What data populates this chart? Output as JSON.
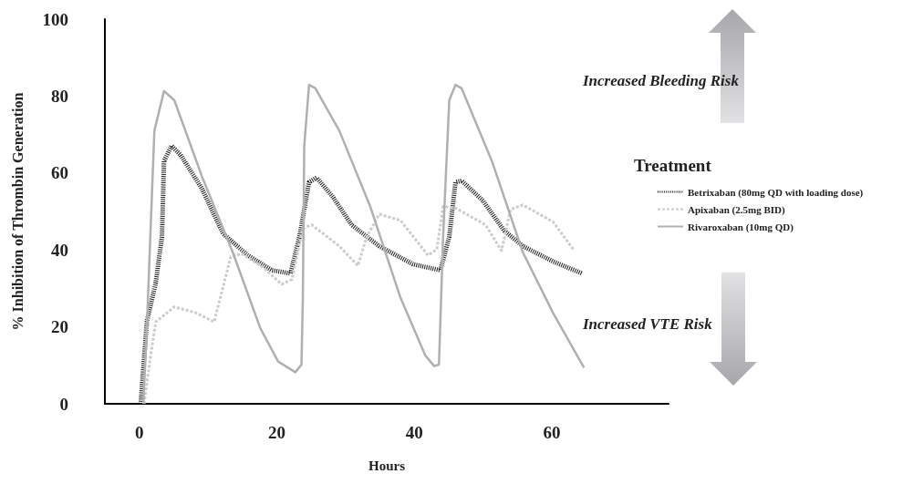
{
  "chart_data": {
    "type": "line",
    "xlabel": "Hours",
    "ylabel": "% Inhibition of Thrombin Generation",
    "legend_title": "Treatment",
    "legend": "right",
    "grid": false,
    "marker": "none",
    "xlim": [
      -5,
      77
    ],
    "xticks": [
      0,
      20,
      40,
      60
    ],
    "ylim": [
      0,
      100
    ],
    "yticks": [
      0,
      20,
      40,
      60,
      80,
      100
    ],
    "annotations": [
      "Increased Bleeding Risk",
      "Increased VTE Risk"
    ],
    "series": [
      {
        "name": "Betrixaban (80mg QD with loading dose)",
        "color": "#1a1a1a",
        "line_style": "dotted",
        "x": [
          0.2,
          1.1,
          2.4,
          3.3,
          3.6,
          4.7,
          6,
          9.1,
          12.2,
          15.8,
          19.3,
          22,
          23.3,
          24.7,
          25.8,
          28.2,
          30.9,
          34.9,
          39.8,
          43.8,
          45.1,
          46,
          46.9,
          50,
          53.1,
          55.8,
          60.2,
          64.4
        ],
        "values": [
          0,
          21.3,
          31.5,
          43.4,
          63.1,
          67.1,
          64.7,
          56,
          44.2,
          38.6,
          34.7,
          33.9,
          43.4,
          57.6,
          58.8,
          53.7,
          46.5,
          41,
          36.3,
          34.7,
          43.4,
          57.6,
          58,
          52.8,
          45,
          41,
          37,
          33.9
        ]
      },
      {
        "name": "Apixaban (2.5mg BID)",
        "color": "#cccccc",
        "line_style": "dashed",
        "x": [
          0.7,
          1.6,
          2.4,
          5.1,
          8.2,
          10.9,
          11.8,
          13.3,
          14.9,
          18,
          20.7,
          22.2,
          23.8,
          25.1,
          29.1,
          31.8,
          33.1,
          34.9,
          38,
          42,
          43.3,
          44.2,
          46,
          50.4,
          52.7,
          54,
          55.8,
          60.2,
          63.3
        ],
        "values": [
          0,
          11.8,
          21.3,
          25.2,
          23.7,
          21.3,
          27.6,
          38.2,
          39,
          35.5,
          31.1,
          32.3,
          45.7,
          46.5,
          41,
          35.9,
          43.4,
          49.3,
          47.7,
          38.6,
          40.2,
          51.3,
          50.9,
          46.5,
          39.8,
          50.5,
          51.7,
          47.3,
          39.8
        ]
      },
      {
        "name": "Rivaroxaban (10mg QD)",
        "color": "#b0b0b4",
        "line_style": "solid",
        "x": [
          0.6,
          1.1,
          2.2,
          3.6,
          5.1,
          9.1,
          13.6,
          17.6,
          20.2,
          22.7,
          23.6,
          23.8,
          24,
          24.7,
          25.6,
          29.1,
          33.6,
          38,
          41.6,
          42.9,
          43.6,
          44.2,
          45.1,
          46,
          46.9,
          51.3,
          55.8,
          60.2,
          64.7
        ],
        "values": [
          0,
          19.7,
          71,
          81.3,
          78.9,
          59.2,
          39.4,
          19.7,
          11,
          8.2,
          10.2,
          27.6,
          67,
          82.9,
          82.1,
          71,
          51.3,
          27.6,
          12.6,
          9.8,
          10.2,
          43.4,
          78.9,
          82.9,
          82,
          63.1,
          39.4,
          23.6,
          9.4
        ]
      }
    ]
  }
}
